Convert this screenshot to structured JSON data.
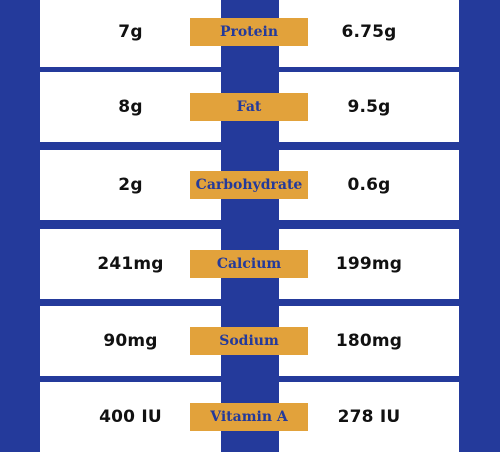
{
  "colors": {
    "background": "#243a9b",
    "cell": "#ffffff",
    "label_bg": "#e2a23b",
    "label_text": "#243a9b",
    "value_text": "#111111"
  },
  "rows": [
    {
      "left": "7g",
      "label": "Protein",
      "right": "6.75g"
    },
    {
      "left": "8g",
      "label": "Fat",
      "right": "9.5g"
    },
    {
      "left": "2g",
      "label": "Carbohydrate",
      "right": "0.6g"
    },
    {
      "left": "241mg",
      "label": "Calcium",
      "right": "199mg"
    },
    {
      "left": "90mg",
      "label": "Sodium",
      "right": "180mg"
    },
    {
      "left": "400 IU",
      "label": "Vitamin A",
      "right": "278 IU"
    }
  ]
}
